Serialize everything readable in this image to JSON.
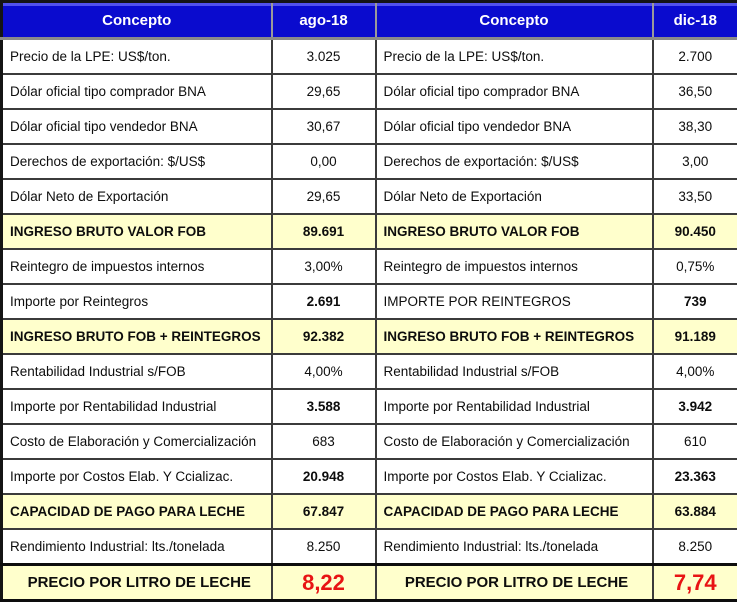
{
  "table": {
    "headers": [
      "Concepto",
      "ago-18",
      "Concepto",
      "dic-18"
    ],
    "rows": [
      {
        "style": "normal",
        "cells": [
          "Precio de la LPE: US$/ton.",
          "3.025",
          "Precio de la LPE: US$/ton.",
          "2.700"
        ]
      },
      {
        "style": "normal",
        "cells": [
          "Dólar oficial tipo comprador BNA",
          "29,65",
          "Dólar oficial tipo comprador BNA",
          "36,50"
        ]
      },
      {
        "style": "normal",
        "cells": [
          "Dólar oficial tipo vendedor BNA",
          "30,67",
          "Dólar oficial tipo vendedor BNA",
          "38,30"
        ]
      },
      {
        "style": "normal",
        "cells": [
          "Derechos de exportación: $/US$",
          "0,00",
          "Derechos de exportación: $/US$",
          "3,00"
        ]
      },
      {
        "style": "normal",
        "cells": [
          "Dólar Neto de Exportación",
          "29,65",
          "Dólar Neto de Exportación",
          "33,50"
        ]
      },
      {
        "style": "highlight",
        "cells": [
          "INGRESO BRUTO VALOR FOB",
          "89.691",
          "INGRESO BRUTO VALOR FOB",
          "90.450"
        ]
      },
      {
        "style": "normal",
        "cells": [
          "Reintegro de impuestos internos",
          "3,00%",
          "Reintegro de impuestos internos",
          "0,75%"
        ]
      },
      {
        "style": "boldvalue",
        "cells": [
          "Importe por Reintegros",
          "2.691",
          "IMPORTE POR REINTEGROS",
          "739"
        ]
      },
      {
        "style": "highlight",
        "cells": [
          "INGRESO BRUTO FOB + REINTEGROS",
          "92.382",
          "INGRESO BRUTO FOB + REINTEGROS",
          "91.189"
        ]
      },
      {
        "style": "normal",
        "cells": [
          "Rentabilidad Industrial s/FOB",
          "4,00%",
          "Rentabilidad Industrial s/FOB",
          "4,00%"
        ]
      },
      {
        "style": "boldvalue",
        "cells": [
          "Importe por Rentabilidad Industrial",
          "3.588",
          "Importe por Rentabilidad Industrial",
          "3.942"
        ]
      },
      {
        "style": "normal",
        "cells": [
          "Costo de Elaboración y Comercialización",
          "683",
          "Costo de Elaboración y Comercialización",
          "610"
        ]
      },
      {
        "style": "boldvalue",
        "cells": [
          "Importe por Costos Elab. Y Ccializac.",
          "20.948",
          "Importe por Costos Elab. Y Ccializac.",
          "23.363"
        ]
      },
      {
        "style": "highlight",
        "cells": [
          "CAPACIDAD DE PAGO PARA LECHE",
          "67.847",
          "CAPACIDAD DE PAGO PARA LECHE",
          "63.884"
        ]
      },
      {
        "style": "normal",
        "cells": [
          "Rendimiento Industrial: lts./tonelada",
          "8.250",
          "Rendimiento Industrial: lts./tonelada",
          "8.250"
        ]
      },
      {
        "style": "total",
        "cells": [
          "PRECIO POR LITRO DE LECHE",
          "8,22",
          "PRECIO POR LITRO DE LECHE",
          "7,74"
        ]
      }
    ]
  },
  "colors": {
    "header_bg": "#0a0bce",
    "header_text": "#ffffff",
    "highlight_bg": "#ffffcc",
    "total_value_text": "#e81414",
    "cell_border": "#3b3b3b",
    "outer_border": "#141414"
  }
}
